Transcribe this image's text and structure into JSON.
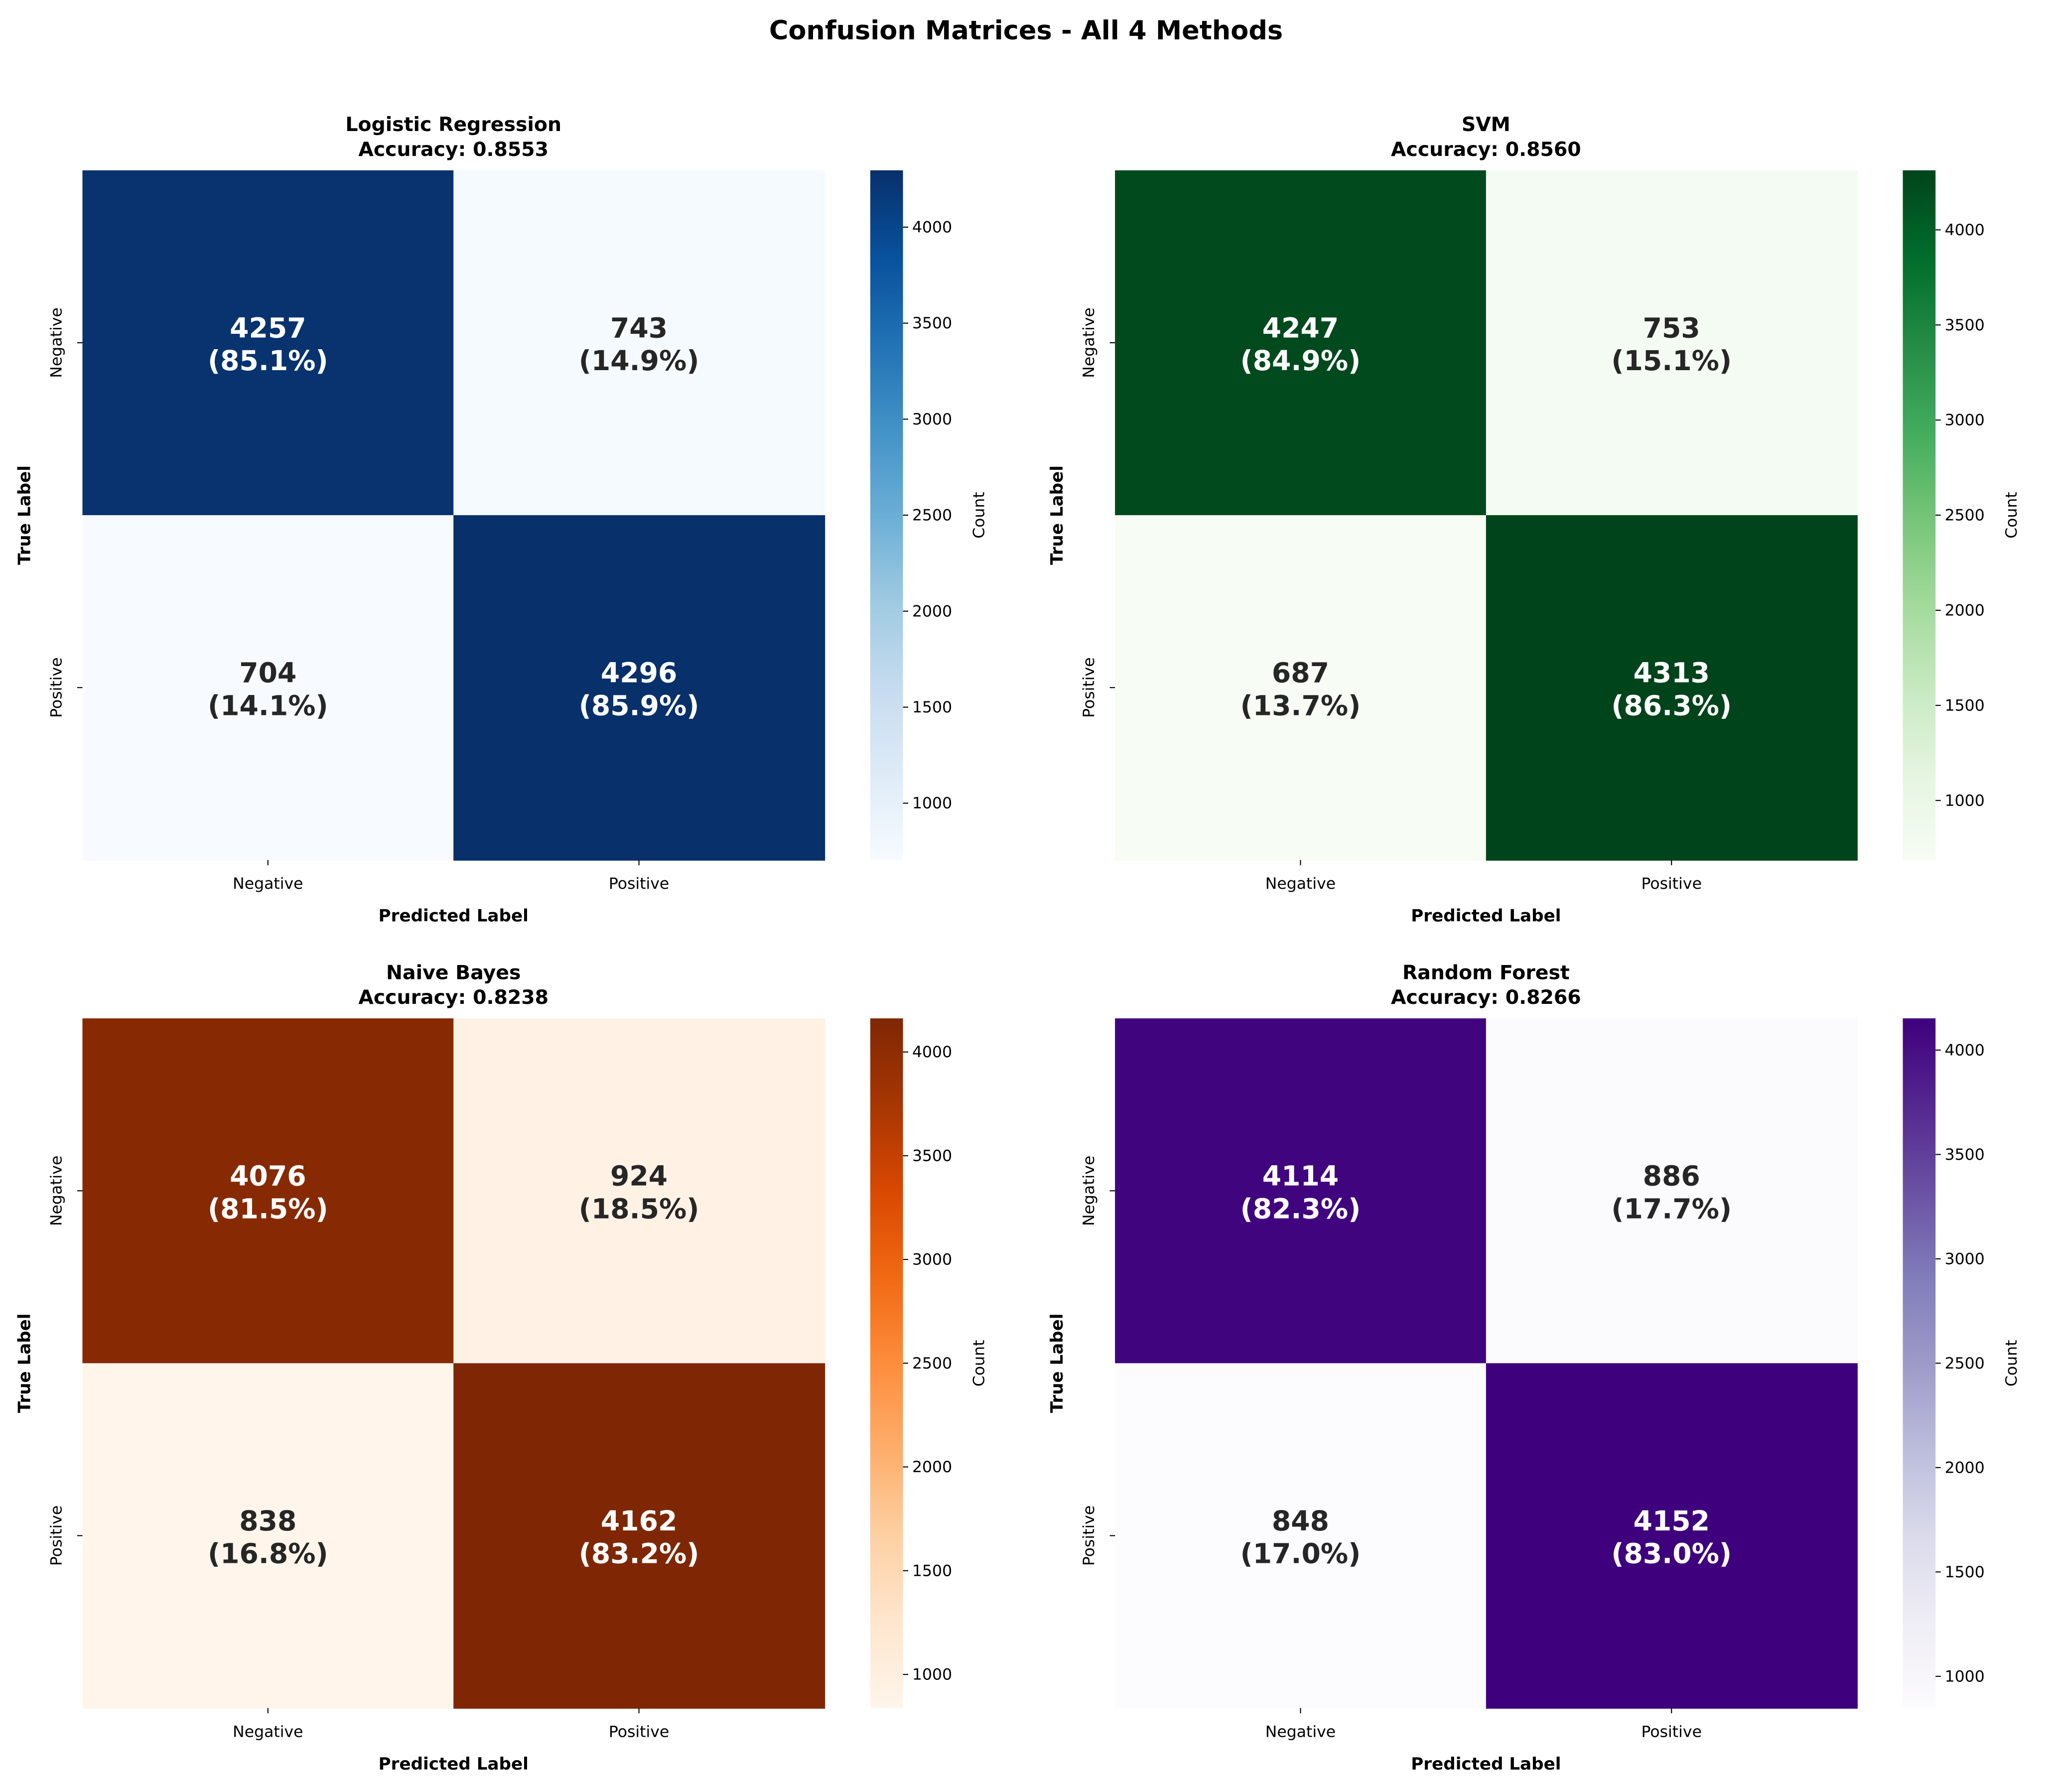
{
  "chart_data": {
    "title": "Confusion Matrices - All 4 Methods",
    "type": "heatmap",
    "panels": [
      {
        "title": "Logistic Regression",
        "subtitle": "Accuracy: 0.8553",
        "colormap": "Blues",
        "matrix": [
          [
            4257,
            743
          ],
          [
            704,
            4296
          ]
        ],
        "percent_labels": [
          [
            "(85.1%)",
            "(14.9%)"
          ],
          [
            "(14.1%)",
            "(85.9%)"
          ]
        ],
        "colorbar_range": [
          704,
          4296
        ],
        "colorbar_ticks": [
          1000,
          1500,
          2000,
          2500,
          3000,
          3500,
          4000
        ]
      },
      {
        "title": "SVM",
        "subtitle": "Accuracy: 0.8560",
        "colormap": "Greens",
        "matrix": [
          [
            4247,
            753
          ],
          [
            687,
            4313
          ]
        ],
        "percent_labels": [
          [
            "(84.9%)",
            "(15.1%)"
          ],
          [
            "(13.7%)",
            "(86.3%)"
          ]
        ],
        "colorbar_range": [
          687,
          4313
        ],
        "colorbar_ticks": [
          1000,
          1500,
          2000,
          2500,
          3000,
          3500,
          4000
        ]
      },
      {
        "title": "Naive Bayes",
        "subtitle": "Accuracy: 0.8238",
        "colormap": "Oranges",
        "matrix": [
          [
            4076,
            924
          ],
          [
            838,
            4162
          ]
        ],
        "percent_labels": [
          [
            "(81.5%)",
            "(18.5%)"
          ],
          [
            "(16.8%)",
            "(83.2%)"
          ]
        ],
        "colorbar_range": [
          838,
          4162
        ],
        "colorbar_ticks": [
          1000,
          1500,
          2000,
          2500,
          3000,
          3500,
          4000
        ]
      },
      {
        "title": "Random Forest",
        "subtitle": "Accuracy: 0.8266",
        "colormap": "Purples",
        "matrix": [
          [
            4114,
            886
          ],
          [
            848,
            4152
          ]
        ],
        "percent_labels": [
          [
            "(82.3%)",
            "(17.7%)"
          ],
          [
            "(17.0%)",
            "(83.0%)"
          ]
        ],
        "colorbar_range": [
          848,
          4152
        ],
        "colorbar_ticks": [
          1000,
          1500,
          2000,
          2500,
          3000,
          3500,
          4000
        ]
      }
    ],
    "x_tick_labels": [
      "Negative",
      "Positive"
    ],
    "y_tick_labels": [
      "Negative",
      "Positive"
    ],
    "xlabel": "Predicted Label",
    "ylabel": "True Label",
    "colorbar_label": "Count"
  }
}
